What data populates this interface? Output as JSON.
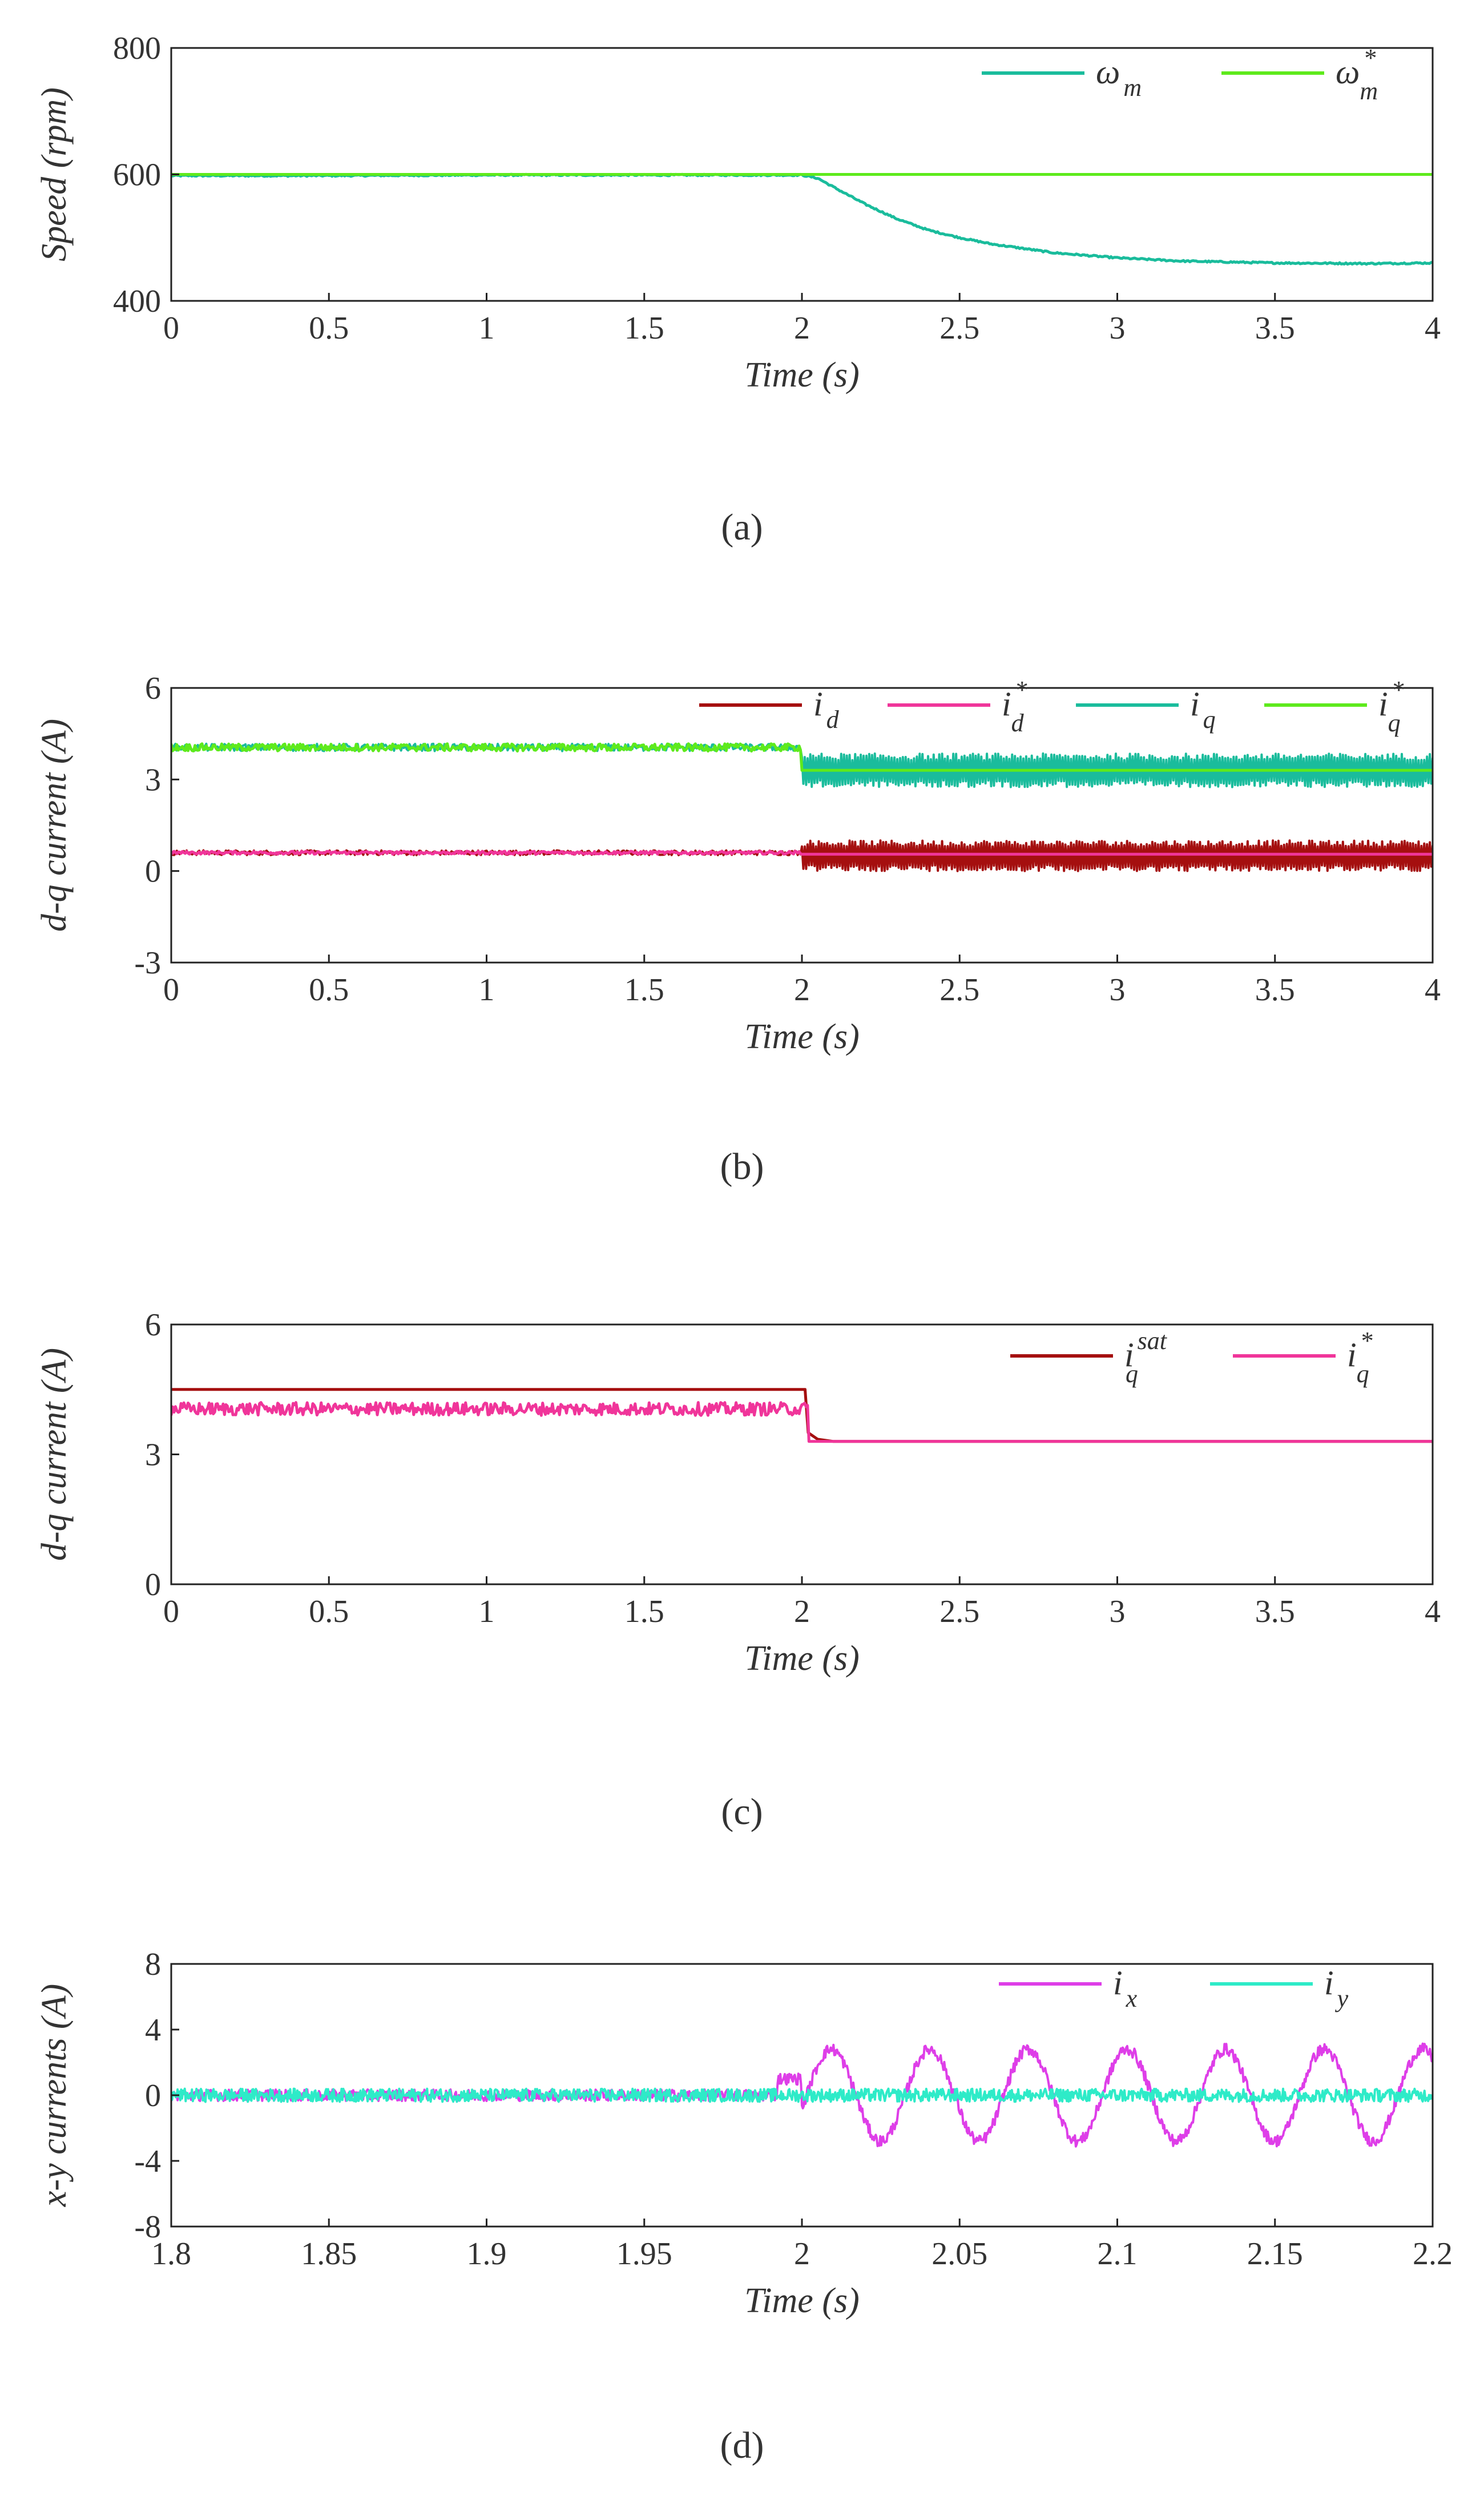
{
  "colors": {
    "teal": "#1ABC9C",
    "green": "#5EEA1C",
    "dark_red": "#A50F0F",
    "pink": "#F0359A",
    "magenta": "#DE3EE8",
    "cyan": "#2EEBC8"
  },
  "chart_data": [
    {
      "panel": "a",
      "type": "line",
      "xlabel": "Time (s)",
      "ylabel": "Speed (rpm)",
      "xlim": [
        0,
        4
      ],
      "ylim": [
        400,
        800
      ],
      "xticks": [
        0,
        0.5,
        1,
        1.5,
        2,
        2.5,
        3,
        3.5,
        4
      ],
      "xtick_labels": [
        "0",
        "0.5",
        "1",
        "1.5",
        "2",
        "2.5",
        "3",
        "3.5",
        "4"
      ],
      "yticks": [
        400,
        600,
        800
      ],
      "ytick_labels": [
        "400",
        "600",
        "800"
      ],
      "series": [
        {
          "name": "ω_m",
          "label_main": "ω",
          "label_sub": "m",
          "label_sup": "",
          "color": "#1ABC9C",
          "x": [
            0,
            0.5,
            1,
            1.5,
            2.0,
            2.05,
            2.1,
            2.2,
            2.3,
            2.4,
            2.5,
            2.6,
            2.8,
            3.0,
            3.2,
            3.5,
            3.8,
            4.0
          ],
          "y": [
            598,
            598,
            599,
            599,
            599,
            594,
            580,
            553,
            530,
            512,
            500,
            490,
            476,
            468,
            463,
            460,
            459,
            460
          ]
        },
        {
          "name": "ω_m*",
          "label_main": "ω",
          "label_sub": "m",
          "label_sup": "*",
          "color": "#5EEA1C",
          "x": [
            0,
            4
          ],
          "y": [
            600,
            600
          ]
        }
      ]
    },
    {
      "panel": "b",
      "type": "line",
      "xlabel": "Time (s)",
      "ylabel": "d-q current (A)",
      "xlim": [
        0,
        4
      ],
      "ylim": [
        -3,
        6
      ],
      "xticks": [
        0,
        0.5,
        1,
        1.5,
        2,
        2.5,
        3,
        3.5,
        4
      ],
      "xtick_labels": [
        "0",
        "0.5",
        "1",
        "1.5",
        "2",
        "2.5",
        "3",
        "3.5",
        "4"
      ],
      "yticks": [
        -3,
        0,
        3,
        6
      ],
      "ytick_labels": [
        "-3",
        "0",
        "3",
        "6"
      ],
      "series": [
        {
          "name": "i_d",
          "label_main": "i",
          "label_sub": "d",
          "label_sup": "",
          "color": "#A50F0F",
          "before": {
            "x_end": 2.0,
            "mean": 0.6,
            "amp": 0.08
          },
          "after": {
            "x_start": 2.0,
            "mean": 0.5,
            "amp": 0.5
          }
        },
        {
          "name": "i_d*",
          "label_main": "i",
          "label_sub": "d",
          "label_sup": "*",
          "color": "#F0359A",
          "before": {
            "x_end": 2.0,
            "mean": 0.6,
            "amp": 0.05
          },
          "after": {
            "x_start": 2.0,
            "mean": 0.55,
            "amp": 0.0
          }
        },
        {
          "name": "i_q",
          "label_main": "i",
          "label_sub": "q",
          "label_sup": "",
          "color": "#1ABC9C",
          "before": {
            "x_end": 2.0,
            "mean": 4.05,
            "amp": 0.12
          },
          "after": {
            "x_start": 2.0,
            "mean": 3.3,
            "amp": 0.55
          }
        },
        {
          "name": "i_q*",
          "label_main": "i",
          "label_sub": "q",
          "label_sup": "*",
          "color": "#5EEA1C",
          "before": {
            "x_end": 2.0,
            "mean": 4.05,
            "amp": 0.12
          },
          "after": {
            "x_start": 2.0,
            "mean": 3.3,
            "amp": 0.0
          }
        }
      ]
    },
    {
      "panel": "c",
      "type": "line",
      "xlabel": "Time (s)",
      "ylabel": "d-q current (A)",
      "xlim": [
        0,
        4
      ],
      "ylim": [
        0,
        6
      ],
      "xticks": [
        0,
        0.5,
        1,
        1.5,
        2,
        2.5,
        3,
        3.5,
        4
      ],
      "xtick_labels": [
        "0",
        "0.5",
        "1",
        "1.5",
        "2",
        "2.5",
        "3",
        "3.5",
        "4"
      ],
      "yticks": [
        0,
        3,
        6
      ],
      "ytick_labels": [
        "0",
        "3",
        "6"
      ],
      "series": [
        {
          "name": "i_q^sat",
          "label_main": "i",
          "label_sub": "q",
          "label_sup": "sat",
          "color": "#A50F0F",
          "x": [
            0,
            2.01,
            2.02,
            2.05,
            2.1,
            4.0
          ],
          "y": [
            4.5,
            4.5,
            3.5,
            3.35,
            3.3,
            3.3
          ]
        },
        {
          "name": "i_q*",
          "label_main": "i",
          "label_sub": "q",
          "label_sup": "*",
          "color": "#F0359A",
          "before": {
            "x_end": 2.02,
            "mean": 4.05,
            "amp": 0.15
          },
          "after": {
            "x_start": 2.02,
            "mean": 3.3,
            "amp": 0.0
          }
        }
      ]
    },
    {
      "panel": "d",
      "type": "line",
      "xlabel": "Time (s)",
      "ylabel": "x-y currents (A)",
      "xlim": [
        1.8,
        2.2
      ],
      "ylim": [
        -8,
        8
      ],
      "xticks": [
        1.8,
        1.85,
        1.9,
        1.95,
        2.0,
        2.05,
        2.1,
        2.15,
        2.2
      ],
      "xtick_labels": [
        "1.8",
        "1.85",
        "1.9",
        "1.95",
        "2",
        "2.05",
        "2.1",
        "2.15",
        "2.2"
      ],
      "yticks": [
        -8,
        -4,
        0,
        4,
        8
      ],
      "ytick_labels": [
        "-8",
        "-4",
        "0",
        "4",
        "8"
      ],
      "series": [
        {
          "name": "i_x",
          "label_main": "i",
          "label_sub": "x",
          "label_sup": "",
          "color": "#DE3EE8",
          "noise_amp": 0.35,
          "transition": 2.0,
          "sine_amp": 2.8,
          "sine_freq_hz": 32
        },
        {
          "name": "i_y",
          "label_main": "i",
          "label_sub": "y",
          "label_sup": "",
          "color": "#2EEBC8",
          "noise_amp": 0.4,
          "transition": 2.0,
          "sine_amp": 0.0,
          "sine_freq_hz": 0
        }
      ]
    }
  ],
  "panel_labels": [
    "(a)",
    "(b)",
    "(c)",
    "(d)"
  ]
}
